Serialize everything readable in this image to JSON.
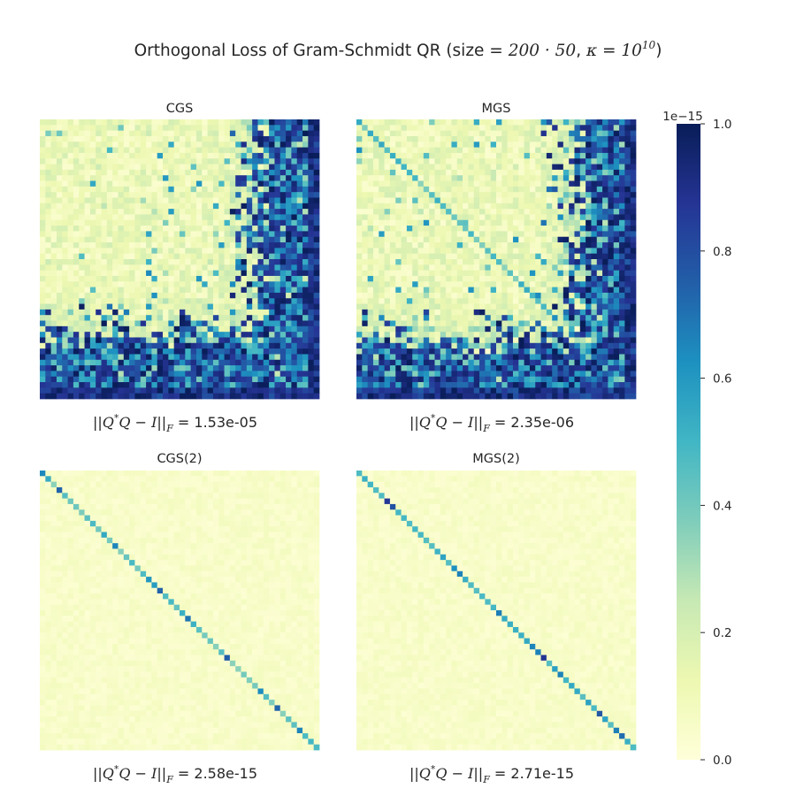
{
  "title": {
    "prefix": "Orthogonal Loss of Gram-Schmidt QR (size = ",
    "size_expr": "200 · 50",
    "sep": ", ",
    "kappa": "κ",
    "eq": " = ",
    "base": "10",
    "exponent": "10",
    "suffix": ")"
  },
  "colorbar": {
    "scale_label": "1e−15",
    "ticks": [
      "0.0",
      "0.2",
      "0.4",
      "0.6",
      "0.8",
      "1.0"
    ],
    "tick_values": [
      0.0,
      0.2,
      0.4,
      0.6,
      0.8,
      1.0
    ],
    "vmin": 0.0,
    "vmax": 1.0,
    "colormap": "YlGnBu",
    "colormap_stops": [
      "#ffffd9",
      "#edf8b1",
      "#c7e9b4",
      "#7fcdbb",
      "#41b6c4",
      "#1d91c0",
      "#225ea8",
      "#253494",
      "#081d58"
    ]
  },
  "norm_label": {
    "pre": "||",
    "q": "Q",
    "star": "*",
    "mid": "Q",
    "minus": " − ",
    "i": "I",
    "post": "||",
    "sub": "F",
    "equals": " = "
  },
  "chart_data": [
    {
      "type": "heatmap",
      "title": "CGS",
      "norm_value": "1.53e-05",
      "matrix_size": 50,
      "pattern": "cgs",
      "vmin": 0,
      "vmax": 1,
      "description_hidden": false
    },
    {
      "type": "heatmap",
      "title": "MGS",
      "norm_value": "2.35e-06",
      "matrix_size": 50,
      "pattern": "mgs",
      "vmin": 0,
      "vmax": 1
    },
    {
      "type": "heatmap",
      "title": "CGS(2)",
      "norm_value": "2.58e-15",
      "matrix_size": 50,
      "pattern": "cgs2",
      "vmin": 0,
      "vmax": 1
    },
    {
      "type": "heatmap",
      "title": "MGS(2)",
      "norm_value": "2.71e-15",
      "matrix_size": 50,
      "pattern": "mgs2",
      "vmin": 0,
      "vmax": 1
    }
  ]
}
